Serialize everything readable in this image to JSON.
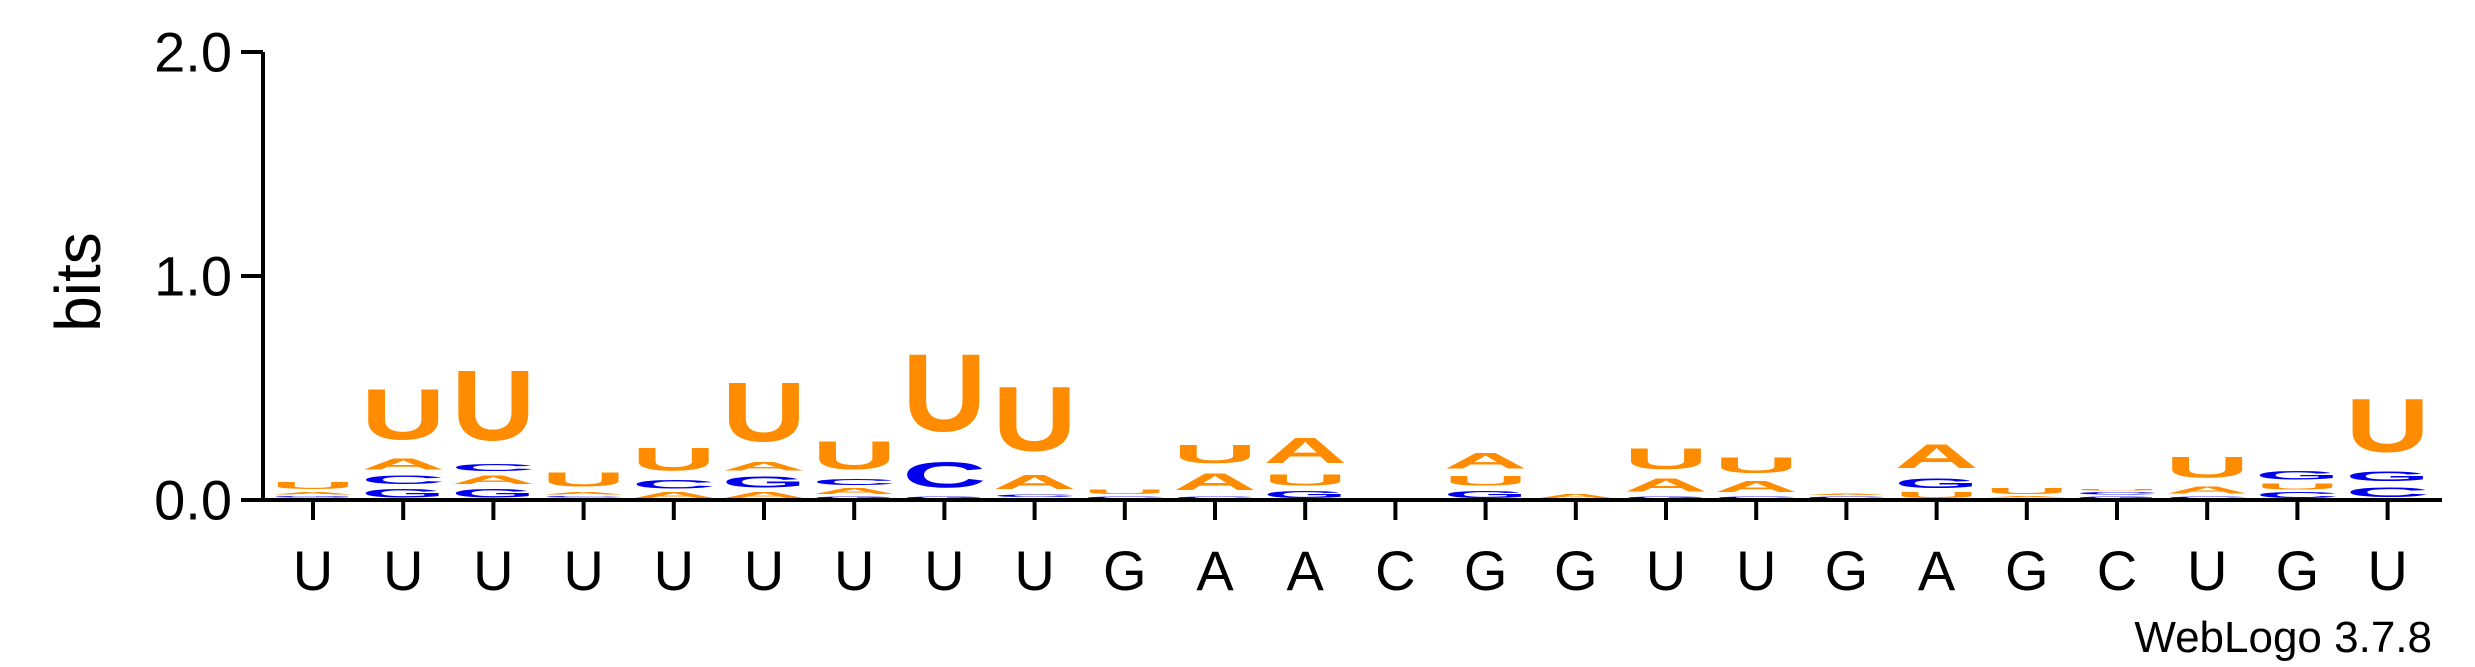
{
  "chart_data": {
    "type": "sequence-logo",
    "ylabel": "bits",
    "ylim": [
      0,
      2.0
    ],
    "yticks": [
      "0.0",
      "1.0",
      "2.0"
    ],
    "x": [
      "U",
      "U",
      "U",
      "U",
      "U",
      "U",
      "U",
      "U",
      "U",
      "G",
      "A",
      "A",
      "C",
      "G",
      "G",
      "U",
      "U",
      "G",
      "A",
      "G",
      "C",
      "U",
      "G",
      "U"
    ],
    "colors": {
      "U": "#ff8c00",
      "A": "#ff8c00",
      "C": "#0000ee",
      "G": "#0000ee"
    },
    "columns": [
      [
        {
          "l": "C",
          "h": 0.01
        },
        {
          "l": "G",
          "h": 0.01
        },
        {
          "l": "A",
          "h": 0.02
        },
        {
          "l": "U",
          "h": 0.05
        }
      ],
      [
        {
          "l": "G",
          "h": 0.06
        },
        {
          "l": "C",
          "h": 0.06
        },
        {
          "l": "A",
          "h": 0.08
        },
        {
          "l": "U",
          "h": 0.36
        }
      ],
      [
        {
          "l": "G",
          "h": 0.06
        },
        {
          "l": "A",
          "h": 0.06
        },
        {
          "l": "C",
          "h": 0.05
        },
        {
          "l": "U",
          "h": 0.5
        }
      ],
      [
        {
          "l": "G",
          "h": 0.01
        },
        {
          "l": "C",
          "h": 0.01
        },
        {
          "l": "A",
          "h": 0.02
        },
        {
          "l": "U",
          "h": 0.1
        }
      ],
      [
        {
          "l": "A",
          "h": 0.04
        },
        {
          "l": "C",
          "h": 0.06
        },
        {
          "l": "U",
          "h": 0.16
        }
      ],
      [
        {
          "l": "A",
          "h": 0.04
        },
        {
          "l": "G",
          "h": 0.08
        },
        {
          "l": "A",
          "h": 0.06
        },
        {
          "l": "U",
          "h": 0.42
        }
      ],
      [
        {
          "l": "G",
          "h": 0.02
        },
        {
          "l": "A",
          "h": 0.04
        },
        {
          "l": "C",
          "h": 0.04
        },
        {
          "l": "U",
          "h": 0.2
        }
      ],
      [
        {
          "l": "G",
          "h": 0.02
        },
        {
          "l": "C",
          "h": 0.18
        },
        {
          "l": "U",
          "h": 0.55
        }
      ],
      [
        {
          "l": "G",
          "h": 0.01
        },
        {
          "l": "C",
          "h": 0.02
        },
        {
          "l": "A",
          "h": 0.1
        },
        {
          "l": "U",
          "h": 0.46
        }
      ],
      [
        {
          "l": "C",
          "h": 0.02
        },
        {
          "l": "U",
          "h": 0.03
        }
      ],
      [
        {
          "l": "C",
          "h": 0.02
        },
        {
          "l": "A",
          "h": 0.12
        },
        {
          "l": "U",
          "h": 0.13
        }
      ],
      [
        {
          "l": "G",
          "h": 0.05
        },
        {
          "l": "U",
          "h": 0.08
        },
        {
          "l": "A",
          "h": 0.18
        }
      ],
      [],
      [
        {
          "l": "G",
          "h": 0.05
        },
        {
          "l": "U",
          "h": 0.07
        },
        {
          "l": "A",
          "h": 0.11
        }
      ],
      [
        {
          "l": "A",
          "h": 0.03
        }
      ],
      [
        {
          "l": "G",
          "h": 0.02
        },
        {
          "l": "A",
          "h": 0.09
        },
        {
          "l": "U",
          "h": 0.15
        }
      ],
      [
        {
          "l": "C",
          "h": 0.02
        },
        {
          "l": "A",
          "h": 0.08
        },
        {
          "l": "U",
          "h": 0.11
        }
      ],
      [
        {
          "l": "C",
          "h": 0.02
        },
        {
          "l": "A",
          "h": 0.01
        }
      ],
      [
        {
          "l": "U",
          "h": 0.04
        },
        {
          "l": "G",
          "h": 0.07
        },
        {
          "l": "A",
          "h": 0.17
        }
      ],
      [
        {
          "l": "C",
          "h": 0.01
        },
        {
          "l": "A",
          "h": 0.01
        },
        {
          "l": "U",
          "h": 0.04
        }
      ],
      [
        {
          "l": "G",
          "h": 0.02
        },
        {
          "l": "C",
          "h": 0.02
        },
        {
          "l": "U",
          "h": 0.01
        }
      ],
      [
        {
          "l": "C",
          "h": 0.02
        },
        {
          "l": "A",
          "h": 0.05
        },
        {
          "l": "U",
          "h": 0.15
        }
      ],
      [
        {
          "l": "C",
          "h": 0.04
        },
        {
          "l": "U",
          "h": 0.04
        },
        {
          "l": "G",
          "h": 0.06
        }
      ],
      [
        {
          "l": "C",
          "h": 0.07
        },
        {
          "l": "G",
          "h": 0.07
        },
        {
          "l": "U",
          "h": 0.38
        }
      ]
    ]
  },
  "credit": "WebLogo 3.7.8"
}
